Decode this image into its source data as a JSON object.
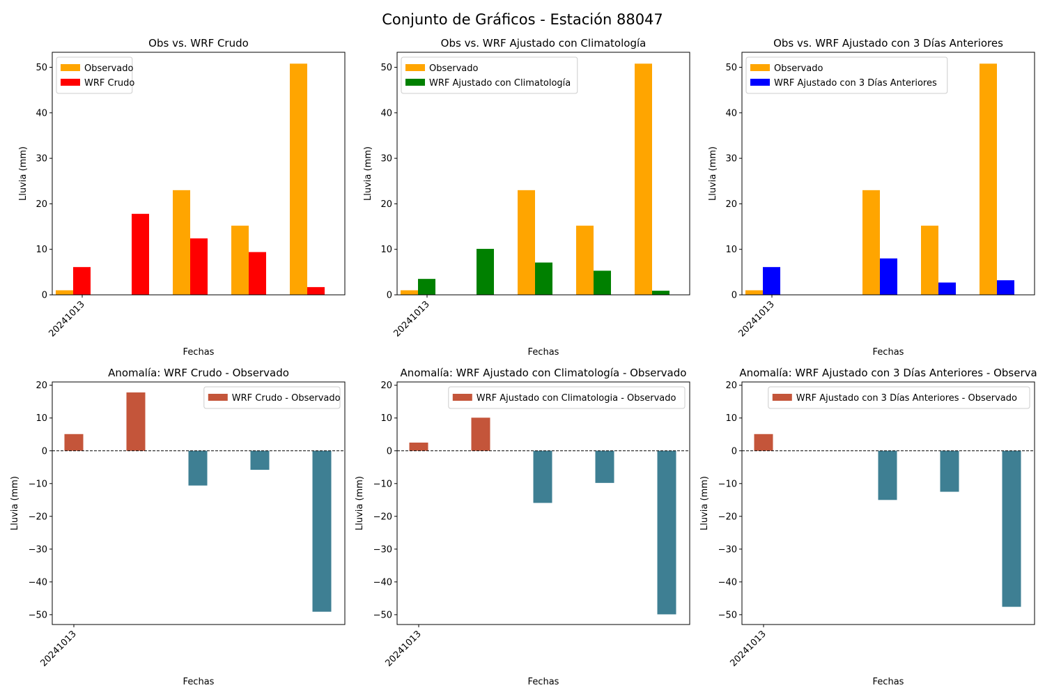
{
  "figure": {
    "suptitle": "Conjunto de Gráficos - Estación 88047"
  },
  "colors": {
    "observado": "#FFA500",
    "wrf_crudo": "#FF0000",
    "wrf_clima": "#008000",
    "wrf_3dias": "#0000FF",
    "anomaly_positive": "#C4553A",
    "anomaly_negative": "#3E7F93",
    "zero_line": "#000000"
  },
  "chart_data": [
    {
      "type": "bar",
      "title": "Obs vs. WRF Crudo",
      "xlabel": "Fechas",
      "ylabel": "Lluvia (mm)",
      "x_tick_labels": [
        "20241013"
      ],
      "ylim": [
        0,
        53.3
      ],
      "yticks": [
        0,
        10,
        20,
        30,
        40,
        50
      ],
      "grid": false,
      "legend_position": "top-left",
      "series": [
        {
          "name": "Observado",
          "values": [
            1.0,
            0.0,
            23.0,
            15.2,
            50.8
          ]
        },
        {
          "name": "WRF Crudo",
          "values": [
            6.1,
            17.8,
            12.4,
            9.4,
            1.7
          ]
        }
      ]
    },
    {
      "type": "bar",
      "title": "Obs vs. WRF Ajustado con Climatología",
      "xlabel": "Fechas",
      "ylabel": "Lluvia (mm)",
      "x_tick_labels": [
        "20241013"
      ],
      "ylim": [
        0,
        53.3
      ],
      "yticks": [
        0,
        10,
        20,
        30,
        40,
        50
      ],
      "grid": false,
      "legend_position": "top-left",
      "series": [
        {
          "name": "Observado",
          "values": [
            1.0,
            0.0,
            23.0,
            15.2,
            50.8
          ]
        },
        {
          "name": "WRF Ajustado con Climatología",
          "values": [
            3.5,
            10.1,
            7.1,
            5.3,
            0.9
          ]
        }
      ]
    },
    {
      "type": "bar",
      "title": "Obs vs. WRF Ajustado con 3 Días Anteriores",
      "xlabel": "Fechas",
      "ylabel": "Lluvia (mm)",
      "x_tick_labels": [
        "20241013"
      ],
      "ylim": [
        0,
        53.3
      ],
      "yticks": [
        0,
        10,
        20,
        30,
        40,
        50
      ],
      "grid": false,
      "legend_position": "top-left",
      "series": [
        {
          "name": "Observado",
          "values": [
            1.0,
            0.0,
            23.0,
            15.2,
            50.8
          ]
        },
        {
          "name": "WRF Ajustado con 3 Días Anteriores",
          "values": [
            6.1,
            0.0,
            8.0,
            2.7,
            3.2
          ]
        }
      ]
    },
    {
      "type": "bar",
      "title": "Anomalía: WRF Crudo - Observado",
      "xlabel": "Fechas",
      "ylabel": "Lluvia (mm)",
      "x_tick_labels": [
        "20241013"
      ],
      "ylim": [
        -53.0,
        21.0
      ],
      "yticks": [
        -50,
        -40,
        -30,
        -20,
        -10,
        0,
        10,
        20
      ],
      "grid": false,
      "legend_position": "top-right",
      "series": [
        {
          "name": "WRF Crudo - Observado",
          "values": [
            5.1,
            17.8,
            -10.6,
            -5.8,
            -49.1
          ]
        }
      ]
    },
    {
      "type": "bar",
      "title": "Anomalía: WRF Ajustado con Climatología - Observado",
      "xlabel": "Fechas",
      "ylabel": "Lluvia (mm)",
      "x_tick_labels": [
        "20241013"
      ],
      "ylim": [
        -53.0,
        21.0
      ],
      "yticks": [
        -50,
        -40,
        -30,
        -20,
        -10,
        0,
        10,
        20
      ],
      "grid": false,
      "legend_position": "top-right",
      "series": [
        {
          "name": "WRF Ajustado con Climatologia - Observado",
          "values": [
            2.5,
            10.1,
            -15.9,
            -9.8,
            -49.9
          ]
        }
      ]
    },
    {
      "type": "bar",
      "title": "Anomalía: WRF Ajustado con 3 Días Anteriores - Observa",
      "xlabel": "Fechas",
      "ylabel": "Lluvia (mm)",
      "x_tick_labels": [
        "20241013"
      ],
      "ylim": [
        -53.0,
        21.0
      ],
      "yticks": [
        -50,
        -40,
        -30,
        -20,
        -10,
        0,
        10,
        20
      ],
      "grid": false,
      "legend_position": "top-right",
      "series": [
        {
          "name": "WRF Ajustado con 3 Días Anteriores - Observado",
          "values": [
            5.1,
            0.0,
            -15.0,
            -12.5,
            -47.6
          ]
        }
      ]
    }
  ]
}
